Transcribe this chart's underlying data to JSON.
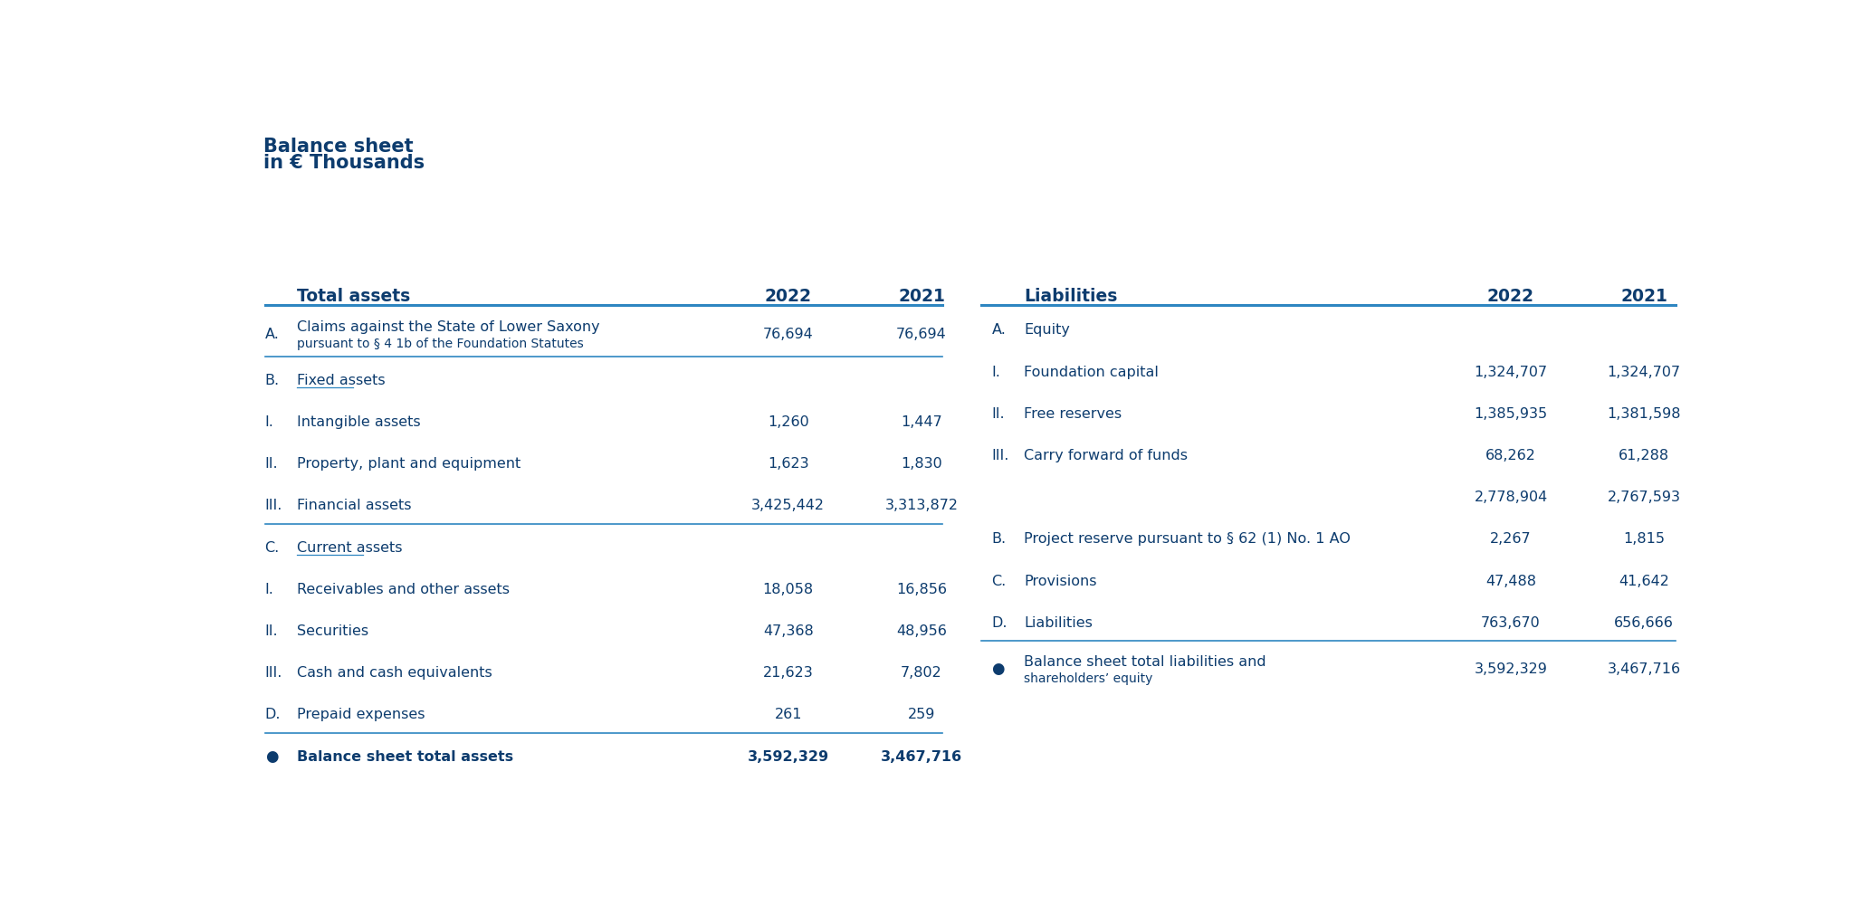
{
  "title_line1": "Balance sheet",
  "title_line2": "in € Thousands",
  "dark_blue": "#0d3c6e",
  "line_color": "#2e86c1",
  "background": "#ffffff",
  "left_header": "Total assets",
  "left_col_2022": "2022",
  "left_col_2021": "2021",
  "left_rows": [
    {
      "prefix": "A.",
      "label": "Claims against the State of Lower Saxony",
      "label2": "pursuant to § 4 1b of the Foundation Statutes",
      "val2022": "76,694",
      "val2021": "76,694",
      "bold": false,
      "underline_label": false,
      "bullet": false,
      "separator_below": true,
      "two_line": true
    },
    {
      "prefix": "B.",
      "label": "Fixed assets",
      "label2": "",
      "val2022": "",
      "val2021": "",
      "bold": false,
      "underline_label": true,
      "bullet": false,
      "separator_below": false,
      "two_line": false
    },
    {
      "prefix": "I.",
      "label": "Intangible assets",
      "label2": "",
      "val2022": "1,260",
      "val2021": "1,447",
      "bold": false,
      "underline_label": false,
      "bullet": false,
      "separator_below": false,
      "two_line": false
    },
    {
      "prefix": "II.",
      "label": "Property, plant and equipment",
      "label2": "",
      "val2022": "1,623",
      "val2021": "1,830",
      "bold": false,
      "underline_label": false,
      "bullet": false,
      "separator_below": false,
      "two_line": false
    },
    {
      "prefix": "III.",
      "label": "Financial assets",
      "label2": "",
      "val2022": "3,425,442",
      "val2021": "3,313,872",
      "bold": false,
      "underline_label": false,
      "bullet": false,
      "separator_below": true,
      "two_line": false
    },
    {
      "prefix": "C.",
      "label": "Current assets",
      "label2": "",
      "val2022": "",
      "val2021": "",
      "bold": false,
      "underline_label": true,
      "bullet": false,
      "separator_below": false,
      "two_line": false
    },
    {
      "prefix": "I.",
      "label": "Receivables and other assets",
      "label2": "",
      "val2022": "18,058",
      "val2021": "16,856",
      "bold": false,
      "underline_label": false,
      "bullet": false,
      "separator_below": false,
      "two_line": false
    },
    {
      "prefix": "II.",
      "label": "Securities",
      "label2": "",
      "val2022": "47,368",
      "val2021": "48,956",
      "bold": false,
      "underline_label": false,
      "bullet": false,
      "separator_below": false,
      "two_line": false
    },
    {
      "prefix": "III.",
      "label": "Cash and cash equivalents",
      "label2": "",
      "val2022": "21,623",
      "val2021": "7,802",
      "bold": false,
      "underline_label": false,
      "bullet": false,
      "separator_below": false,
      "two_line": false
    },
    {
      "prefix": "D.",
      "label": "Prepaid expenses",
      "label2": "",
      "val2022": "261",
      "val2021": "259",
      "bold": false,
      "underline_label": false,
      "bullet": false,
      "separator_below": true,
      "two_line": false
    },
    {
      "prefix": "●",
      "label": "Balance sheet total assets",
      "label2": "",
      "val2022": "3,592,329",
      "val2021": "3,467,716",
      "bold": true,
      "underline_label": false,
      "bullet": true,
      "separator_below": false,
      "two_line": false
    }
  ],
  "right_header": "Liabilities",
  "right_col_2022": "2022",
  "right_col_2021": "2021",
  "right_rows": [
    {
      "prefix": "A.",
      "label": "Equity",
      "label2": "",
      "val2022": "",
      "val2021": "",
      "bold": false,
      "underline_label": false,
      "bullet": false,
      "separator_below": false,
      "two_line": false
    },
    {
      "prefix": "I.",
      "label": "Foundation capital",
      "label2": "",
      "val2022": "1,324,707",
      "val2021": "1,324,707",
      "bold": false,
      "underline_label": false,
      "bullet": false,
      "separator_below": false,
      "two_line": false
    },
    {
      "prefix": "II.",
      "label": "Free reserves",
      "label2": "",
      "val2022": "1,385,935",
      "val2021": "1,381,598",
      "bold": false,
      "underline_label": false,
      "bullet": false,
      "separator_below": false,
      "two_line": false
    },
    {
      "prefix": "III.",
      "label": "Carry forward of funds",
      "label2": "",
      "val2022": "68,262",
      "val2021": "61,288",
      "bold": false,
      "underline_label": false,
      "bullet": false,
      "separator_below": false,
      "two_line": false
    },
    {
      "prefix": "",
      "label": "",
      "label2": "",
      "val2022": "2,778,904",
      "val2021": "2,767,593",
      "bold": false,
      "underline_label": false,
      "bullet": false,
      "separator_below": false,
      "two_line": false
    },
    {
      "prefix": "B.",
      "label": "Project reserve pursuant to § 62 (1) No. 1 AO",
      "label2": "",
      "val2022": "2,267",
      "val2021": "1,815",
      "bold": false,
      "underline_label": false,
      "bullet": false,
      "separator_below": false,
      "two_line": false
    },
    {
      "prefix": "C.",
      "label": "Provisions",
      "label2": "",
      "val2022": "47,488",
      "val2021": "41,642",
      "bold": false,
      "underline_label": false,
      "bullet": false,
      "separator_below": false,
      "two_line": false
    },
    {
      "prefix": "D.",
      "label": "Liabilities",
      "label2": "",
      "val2022": "763,670",
      "val2021": "656,666",
      "bold": false,
      "underline_label": false,
      "bullet": false,
      "separator_below": true,
      "two_line": false
    },
    {
      "prefix": "●",
      "label": "Balance sheet total liabilities and",
      "label2": "shareholders’ equity",
      "val2022": "3,592,329",
      "val2021": "3,467,716",
      "bold": false,
      "underline_label": false,
      "bullet": true,
      "separator_below": false,
      "two_line": true
    }
  ]
}
